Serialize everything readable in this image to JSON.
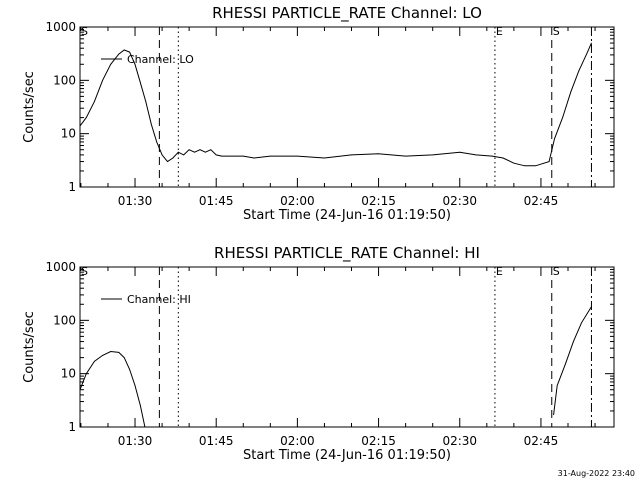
{
  "chart_data": [
    {
      "type": "line",
      "title": "RHESSI PARTICLE_RATE Channel: LO",
      "xlabel": "Start Time (24-Jun-16 01:19:50)",
      "ylabel": "Counts/sec",
      "yscale": "log",
      "ylim": [
        1,
        1000
      ],
      "xlim": [
        "01:19:50",
        "02:58:30"
      ],
      "xticks": [
        "01:30",
        "01:45",
        "02:00",
        "02:15",
        "02:30",
        "02:45"
      ],
      "yticks": [
        "1",
        "10",
        "100",
        "1000"
      ],
      "legend": {
        "label": "Channel: LO",
        "position": "top-left"
      },
      "markers": [
        {
          "label": "S",
          "x": "01:19:50",
          "style": "none"
        },
        {
          "label": "",
          "x": "01:34:30",
          "style": "dashed"
        },
        {
          "label": "",
          "x": "01:38:00",
          "style": "dotted"
        },
        {
          "label": "E",
          "x": "02:36:30",
          "style": "dotted"
        },
        {
          "label": "S",
          "x": "02:47:00",
          "style": "dashed"
        },
        {
          "label": "",
          "x": "02:54:20",
          "style": "dashdot"
        }
      ],
      "series": [
        {
          "name": "Channel: LO",
          "points": [
            [
              "01:19:50",
              14
            ],
            [
              "01:21:00",
              20
            ],
            [
              "01:22:30",
              40
            ],
            [
              "01:24:00",
              100
            ],
            [
              "01:25:30",
              200
            ],
            [
              "01:27:00",
              310
            ],
            [
              "01:28:00",
              370
            ],
            [
              "01:29:00",
              340
            ],
            [
              "01:30:00",
              200
            ],
            [
              "01:31:00",
              90
            ],
            [
              "01:32:00",
              40
            ],
            [
              "01:33:00",
              15
            ],
            [
              "01:34:00",
              7
            ],
            [
              "01:35:00",
              4
            ],
            [
              "01:36:00",
              3
            ],
            [
              "01:37:00",
              3.5
            ],
            [
              "01:38:00",
              4.5
            ],
            [
              "01:39:00",
              4
            ],
            [
              "01:40:00",
              5
            ],
            [
              "01:41:00",
              4.5
            ],
            [
              "01:42:00",
              5
            ],
            [
              "01:43:00",
              4.5
            ],
            [
              "01:44:00",
              5
            ],
            [
              "01:45:00",
              4
            ],
            [
              "01:46:00",
              3.8
            ],
            [
              "01:50:00",
              3.8
            ],
            [
              "01:52:00",
              3.5
            ],
            [
              "01:55:00",
              3.8
            ],
            [
              "02:00:00",
              3.8
            ],
            [
              "02:05:00",
              3.5
            ],
            [
              "02:10:00",
              4
            ],
            [
              "02:15:00",
              4.2
            ],
            [
              "02:20:00",
              3.8
            ],
            [
              "02:25:00",
              4
            ],
            [
              "02:30:00",
              4.5
            ],
            [
              "02:33:00",
              4
            ],
            [
              "02:36:00",
              3.8
            ],
            [
              "02:38:00",
              3.5
            ],
            [
              "02:40:00",
              2.8
            ],
            [
              "02:42:00",
              2.5
            ],
            [
              "02:44:00",
              2.5
            ],
            [
              "02:46:30",
              3
            ],
            [
              "02:47:30",
              8
            ],
            [
              "02:49:00",
              20
            ],
            [
              "02:50:30",
              60
            ],
            [
              "02:52:00",
              150
            ],
            [
              "02:53:30",
              320
            ],
            [
              "02:54:20",
              500
            ]
          ]
        }
      ]
    },
    {
      "type": "line",
      "title": "RHESSI PARTICLE_RATE Channel: HI",
      "xlabel": "Start Time (24-Jun-16 01:19:50)",
      "ylabel": "Counts/sec",
      "yscale": "log",
      "ylim": [
        1,
        1000
      ],
      "xlim": [
        "01:19:50",
        "02:58:30"
      ],
      "xticks": [
        "01:30",
        "01:45",
        "02:00",
        "02:15",
        "02:30",
        "02:45"
      ],
      "yticks": [
        "1",
        "10",
        "100",
        "1000"
      ],
      "legend": {
        "label": "Channel: HI",
        "position": "top-left"
      },
      "markers": [
        {
          "label": "S",
          "x": "01:19:50",
          "style": "none"
        },
        {
          "label": "",
          "x": "01:34:30",
          "style": "dashed"
        },
        {
          "label": "",
          "x": "01:38:00",
          "style": "dotted"
        },
        {
          "label": "E",
          "x": "02:36:30",
          "style": "dotted"
        },
        {
          "label": "S",
          "x": "02:47:00",
          "style": "dashed"
        },
        {
          "label": "",
          "x": "02:54:20",
          "style": "dashdot"
        }
      ],
      "series": [
        {
          "name": "Channel: HI",
          "points": [
            [
              "01:19:50",
              5
            ],
            [
              "01:21:00",
              10
            ],
            [
              "01:22:30",
              17
            ],
            [
              "01:24:00",
              22
            ],
            [
              "01:25:30",
              26
            ],
            [
              "01:27:00",
              25
            ],
            [
              "01:28:00",
              20
            ],
            [
              "01:29:00",
              12
            ],
            [
              "01:30:00",
              6
            ],
            [
              "01:31:00",
              2.5
            ],
            [
              "01:31:50",
              1
            ]
          ]
        },
        {
          "name": "",
          "points": [
            [
              "02:47:20",
              1.7
            ],
            [
              "02:48:00",
              6
            ],
            [
              "02:49:30",
              15
            ],
            [
              "02:51:00",
              40
            ],
            [
              "02:52:30",
              90
            ],
            [
              "02:54:20",
              180
            ]
          ]
        }
      ]
    }
  ],
  "footer": {
    "timestamp": "31-Aug-2022 23:40"
  }
}
